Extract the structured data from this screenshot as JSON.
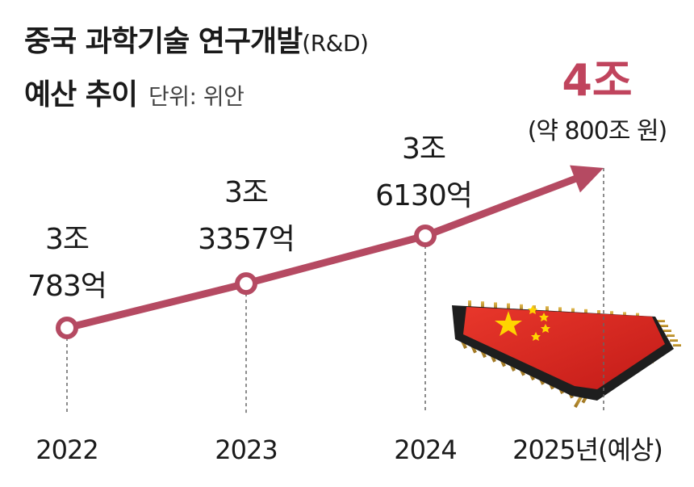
{
  "title": {
    "line1": "중국 과학기술 연구개발",
    "line1_suffix": "(R&D)",
    "line2": "예산 추이",
    "unit": "단위: 위안"
  },
  "colors": {
    "line": "#b54a62",
    "marker_fill": "#ffffff",
    "highlight": "#c0445d",
    "chip_red": "#d8231e",
    "chip_star": "#ffd400",
    "pin_gold": "#c99a2e"
  },
  "icons": [
    "chip-china-flag-icon"
  ],
  "chart_data": {
    "type": "line",
    "categories": [
      "2022",
      "2023",
      "2024",
      "2025년(예상)"
    ],
    "values": [
      30783,
      33357,
      36130,
      40000
    ],
    "value_unit": "억 위안",
    "data_labels": [
      [
        "3조",
        "783억"
      ],
      [
        "3조",
        "3357억"
      ],
      [
        "3조",
        "6130억"
      ],
      [
        "4조"
      ]
    ],
    "highlight": {
      "value": "4조",
      "sub": "(약 800조 원)"
    },
    "last_point_style": "arrow",
    "grid": false,
    "legend": "none"
  }
}
